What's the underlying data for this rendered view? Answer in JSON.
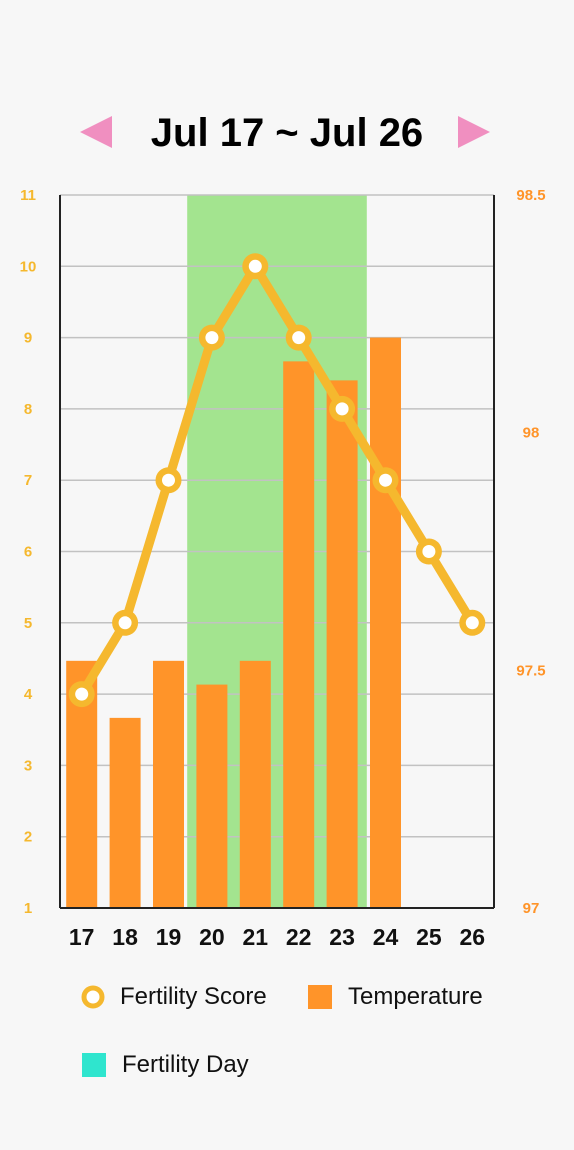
{
  "header": {
    "title": "Jul 17 ~ Jul 26",
    "prev_icon": "pink-triangle-left-icon",
    "next_icon": "pink-triangle-right-icon"
  },
  "colors": {
    "score_line": "#F5B82E",
    "temperature_bar": "#FF9429",
    "fertility_band": "#A3E48F",
    "fertility_legend": "#2FE5CE",
    "left_axis_text": "#F5B82E",
    "right_axis_text": "#FF9429",
    "arrow": "#F08FC0",
    "grid": "#c2c2c2"
  },
  "legend": {
    "score_label": "Fertility Score",
    "temperature_label": "Temperature",
    "fertility_day_label": "Fertility Day"
  },
  "chart_data": {
    "type": "bar",
    "categories": [
      "17",
      "18",
      "19",
      "20",
      "21",
      "22",
      "23",
      "24",
      "25",
      "26"
    ],
    "series": [
      {
        "name": "Fertility Score",
        "type": "line",
        "axis": "left",
        "values": [
          4,
          5,
          7,
          9,
          10,
          9,
          8,
          7,
          6,
          5
        ]
      },
      {
        "name": "Temperature",
        "type": "bar",
        "axis": "right",
        "values": [
          97.52,
          97.4,
          97.52,
          97.47,
          97.52,
          98.15,
          98.11,
          98.2,
          null,
          null
        ]
      }
    ],
    "fertility_days": [
      "20",
      "21",
      "22",
      "23"
    ],
    "left_axis": {
      "min": 1,
      "max": 11,
      "ticks": [
        "1",
        "2",
        "3",
        "4",
        "5",
        "6",
        "7",
        "8",
        "9",
        "10",
        "11"
      ]
    },
    "right_axis": {
      "min": 97,
      "max": 98.5,
      "ticks": [
        "97",
        "97.5",
        "98",
        "98.5"
      ]
    },
    "grid": true,
    "legend_position": "bottom"
  }
}
